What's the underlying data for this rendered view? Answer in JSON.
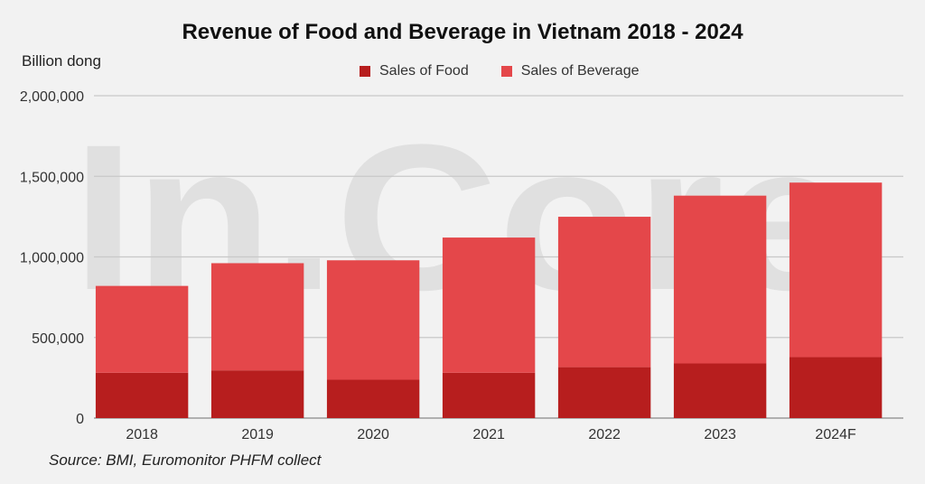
{
  "chart_data": {
    "type": "bar",
    "stacked": true,
    "title": "Revenue of Food and Beverage in Vietnam 2018 - 2024",
    "ylabel": "Billion dong",
    "xlabel": "",
    "categories": [
      "2018",
      "2019",
      "2020",
      "2021",
      "2022",
      "2023",
      "2024F"
    ],
    "series": [
      {
        "name": "Sales of Food",
        "color": "#b71e1e",
        "values": [
          281000,
          296000,
          238000,
          281000,
          316000,
          339000,
          378000
        ]
      },
      {
        "name": "Sales of Beverage",
        "color": "#e4474a",
        "values": [
          539000,
          665000,
          741000,
          839000,
          933000,
          1041000,
          1083000
        ]
      }
    ],
    "ylim": [
      0,
      2000000
    ],
    "yticks": [
      "0",
      "500,000",
      "1,000,000",
      "1,500,000",
      "2,000,000"
    ],
    "ytick_values": [
      0,
      500000,
      1000000,
      1500000,
      2000000
    ],
    "grid": true,
    "legend": "top-center",
    "source": "Source: BMI, Euromonitor PHFM collect",
    "watermark": "In.Core"
  }
}
